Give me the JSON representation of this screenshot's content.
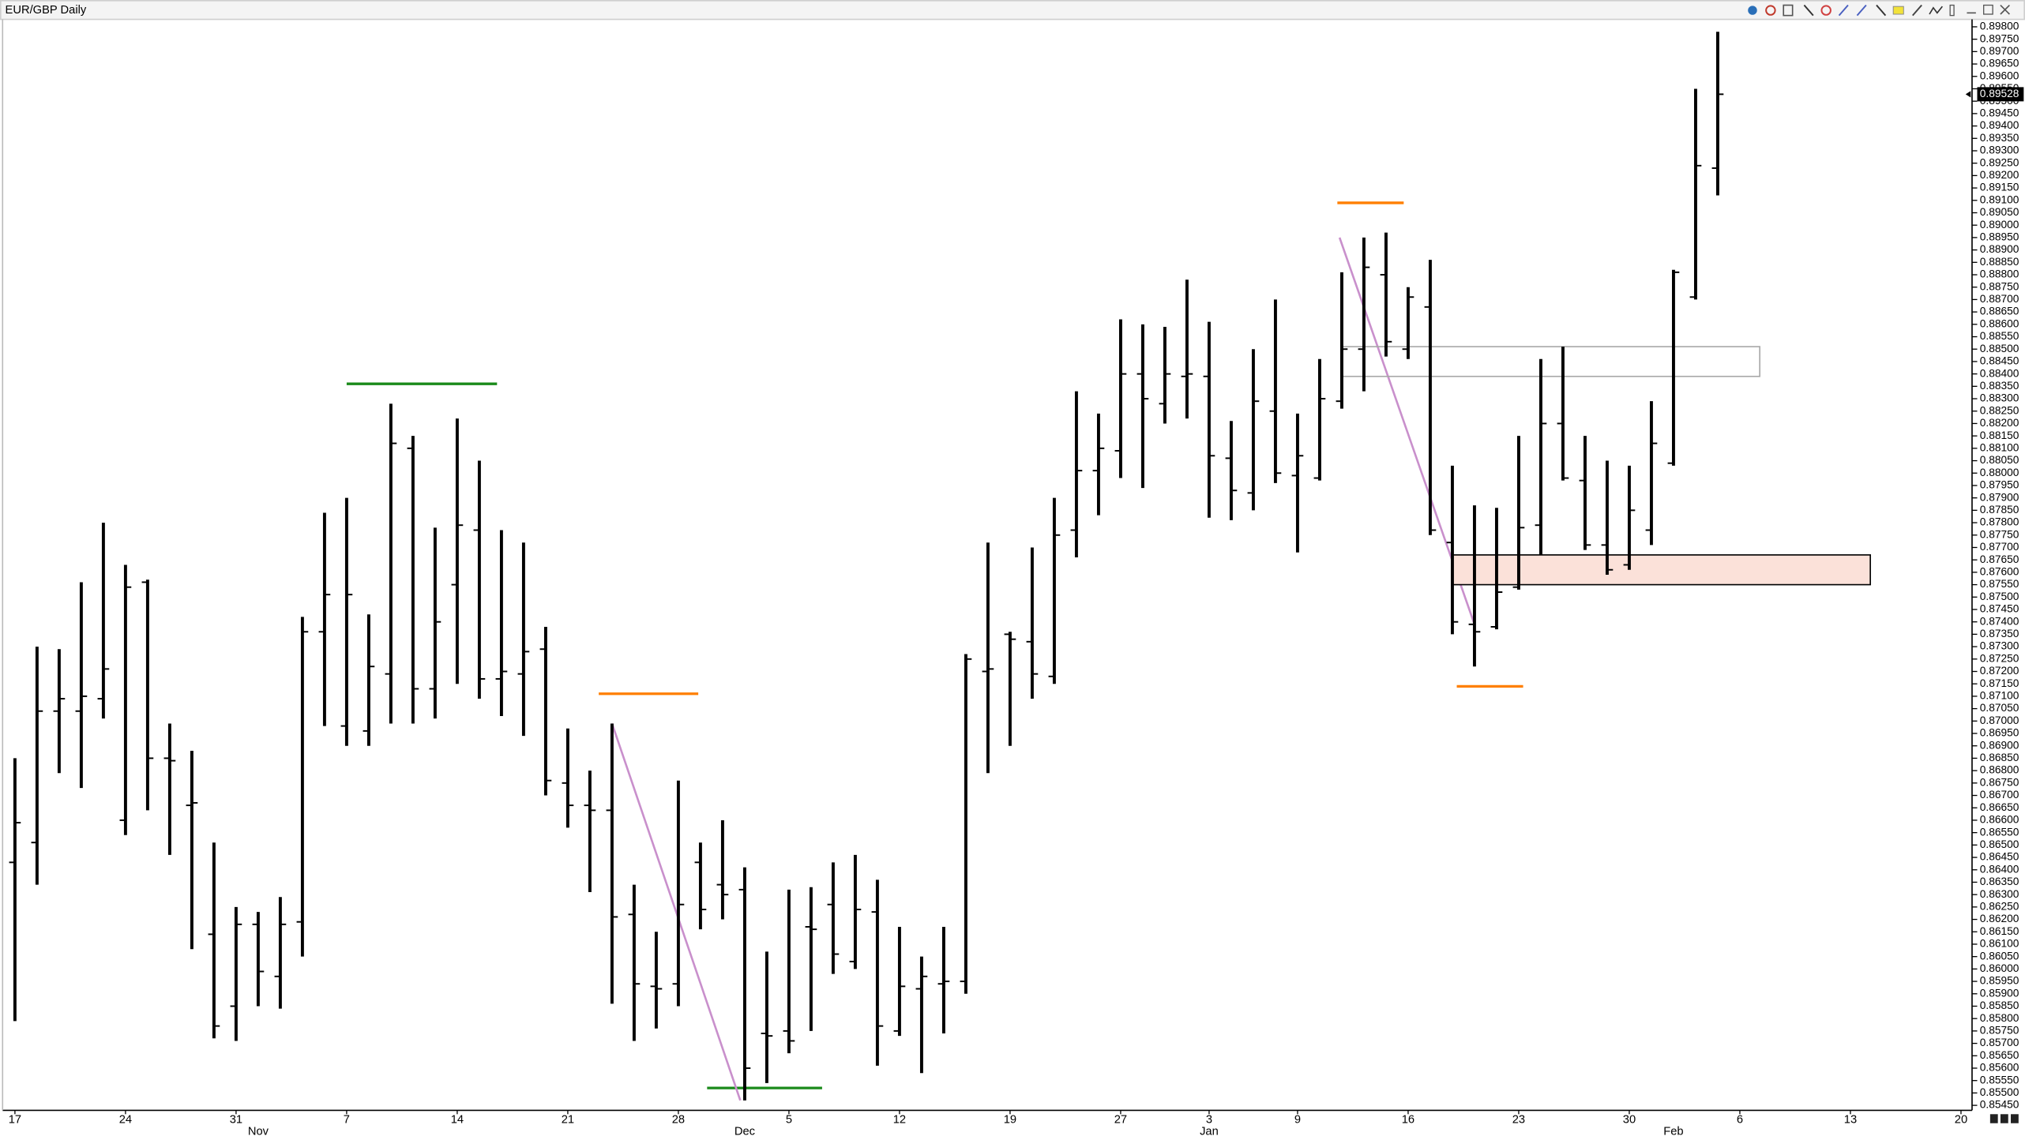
{
  "chart_data": {
    "type": "ohlc",
    "title": "EUR/GBP Daily",
    "categories": [
      "17",
      null,
      null,
      null,
      null,
      "24",
      null,
      null,
      null,
      null,
      "31",
      null,
      null,
      null,
      null,
      "7",
      null,
      null,
      null,
      null,
      "14",
      null,
      null,
      null,
      null,
      "21",
      null,
      null,
      null,
      null,
      "28",
      null,
      null,
      null,
      null,
      "5",
      null,
      null,
      null,
      null,
      "12",
      null,
      null,
      null,
      null,
      "19",
      null,
      null,
      null,
      null,
      "27",
      null,
      null,
      null,
      "3",
      null,
      null,
      null,
      "9",
      null,
      null,
      null,
      null,
      "16",
      null,
      null,
      null,
      null,
      "23",
      null,
      null,
      null,
      null,
      "30",
      null,
      null,
      null,
      null,
      "6",
      null,
      null,
      null,
      null,
      "13",
      null,
      null,
      null,
      null,
      "20"
    ],
    "month_labels": [
      null,
      null,
      null,
      null,
      null,
      null,
      null,
      null,
      null,
      null,
      null,
      "Nov",
      null,
      null,
      null,
      null,
      null,
      null,
      null,
      null,
      null,
      null,
      null,
      null,
      null,
      null,
      null,
      null,
      null,
      null,
      null,
      null,
      null,
      "Dec",
      null,
      null,
      null,
      null,
      null,
      null,
      null,
      null,
      null,
      null,
      null,
      null,
      null,
      null,
      null,
      null,
      null,
      null,
      null,
      null,
      "Jan",
      null,
      null,
      null,
      null,
      null,
      null,
      null,
      null,
      null,
      null,
      null,
      null,
      null,
      null,
      null,
      null,
      null,
      null,
      null,
      null,
      "Feb",
      null,
      null,
      null,
      null,
      null,
      null,
      null,
      null,
      null,
      null,
      null,
      null,
      null
    ],
    "open": [
      0.8643,
      0.8651,
      0.8704,
      0.8704,
      0.8709,
      0.866,
      0.8756,
      0.8685,
      0.8666,
      0.8614,
      0.8585,
      0.8618,
      0.8597,
      0.8619,
      0.8736,
      0.8698,
      0.8696,
      0.8719,
      0.881,
      0.8713,
      0.8755,
      0.8777,
      0.8717,
      0.8719,
      0.8729,
      0.8675,
      0.8666,
      0.8664,
      0.8622,
      0.8593,
      0.8594,
      0.8643,
      0.8634,
      0.8632,
      0.8574,
      0.8575,
      0.8617,
      0.8626,
      0.8603,
      0.8623,
      0.8575,
      0.8592,
      0.8594,
      0.8595,
      0.872,
      0.8735,
      0.8732,
      0.8718,
      0.8777,
      0.8801,
      0.8809,
      0.884,
      0.8828,
      0.8839,
      0.8839,
      0.8806,
      0.8792,
      0.8825,
      0.8799,
      0.8798,
      0.8829,
      0.885,
      0.888,
      0.885,
      0.8867,
      0.8772,
      0.8739,
      0.8738,
      0.8754,
      0.8779,
      0.882,
      0.8797,
      0.8771,
      0.8763,
      0.8777,
      0.8804,
      0.8871,
      0.8923,
      null,
      null,
      null,
      null,
      null,
      null,
      null,
      null,
      null,
      null,
      null
    ],
    "high": [
      0.8685,
      0.873,
      0.8729,
      0.8756,
      0.878,
      0.8763,
      0.8757,
      0.8699,
      0.8688,
      0.8651,
      0.8625,
      0.8623,
      0.8629,
      0.8742,
      0.8784,
      0.879,
      0.8743,
      0.8828,
      0.8815,
      0.8778,
      0.8822,
      0.8805,
      0.8777,
      0.8772,
      0.8738,
      0.8697,
      0.868,
      0.8699,
      0.8634,
      0.8615,
      0.8676,
      0.8651,
      0.866,
      0.8641,
      0.8607,
      0.8632,
      0.8633,
      0.8643,
      0.8646,
      0.8636,
      0.8617,
      0.8605,
      0.8617,
      0.8727,
      0.8772,
      0.8736,
      0.877,
      0.879,
      0.8833,
      0.8824,
      0.8862,
      0.886,
      0.8859,
      0.8878,
      0.8861,
      0.8821,
      0.885,
      0.887,
      0.8824,
      0.8846,
      0.8881,
      0.8895,
      0.8897,
      0.8875,
      0.8886,
      0.8803,
      0.8787,
      0.8786,
      0.8815,
      0.8846,
      0.8851,
      0.8815,
      0.8805,
      0.8803,
      0.8829,
      0.8882,
      0.8955,
      0.8978,
      null,
      null,
      null,
      null,
      null,
      null,
      null,
      null,
      null,
      null,
      null
    ],
    "low": [
      0.8579,
      0.8634,
      0.8679,
      0.8673,
      0.8701,
      0.8654,
      0.8664,
      0.8646,
      0.8608,
      0.8572,
      0.8571,
      0.8585,
      0.8584,
      0.8605,
      0.8698,
      0.869,
      0.869,
      0.8699,
      0.8699,
      0.8701,
      0.8715,
      0.8709,
      0.8702,
      0.8694,
      0.867,
      0.8657,
      0.8631,
      0.8586,
      0.8571,
      0.8576,
      0.8585,
      0.8616,
      0.862,
      0.8547,
      0.8554,
      0.8566,
      0.8575,
      0.8598,
      0.86,
      0.8561,
      0.8573,
      0.8558,
      0.8574,
      0.859,
      0.8679,
      0.869,
      0.8709,
      0.8715,
      0.8766,
      0.8783,
      0.8798,
      0.8794,
      0.882,
      0.8822,
      0.8782,
      0.8781,
      0.8785,
      0.8796,
      0.8768,
      0.8797,
      0.8826,
      0.8833,
      0.8847,
      0.8846,
      0.8775,
      0.8735,
      0.8722,
      0.8737,
      0.8753,
      0.8767,
      0.8797,
      0.8769,
      0.8759,
      0.8761,
      0.8771,
      0.8803,
      0.887,
      0.8912,
      null,
      null,
      null,
      null,
      null,
      null,
      null,
      null,
      null,
      null,
      null
    ],
    "close": [
      0.8659,
      0.8704,
      0.8709,
      0.871,
      0.8721,
      0.8754,
      0.8685,
      0.8684,
      0.8667,
      0.8577,
      0.8618,
      0.8599,
      0.8618,
      0.8736,
      0.8751,
      0.8751,
      0.8722,
      0.8812,
      0.8713,
      0.874,
      0.8779,
      0.8717,
      0.872,
      0.8728,
      0.8676,
      0.8666,
      0.8664,
      0.8621,
      0.8594,
      0.8592,
      0.8626,
      0.8624,
      0.863,
      0.856,
      0.8573,
      0.8571,
      0.8616,
      0.8606,
      0.8624,
      0.8577,
      0.8593,
      0.8597,
      0.8595,
      0.8725,
      0.8721,
      0.8733,
      0.8719,
      0.8775,
      0.8801,
      0.881,
      0.884,
      0.883,
      0.884,
      0.884,
      0.8807,
      0.8793,
      0.8829,
      0.88,
      0.8807,
      0.883,
      0.885,
      0.8883,
      0.8853,
      0.8871,
      0.8777,
      0.874,
      0.8736,
      0.8752,
      0.8778,
      0.882,
      0.8798,
      0.8771,
      0.8761,
      0.8785,
      0.8812,
      0.8881,
      0.8924,
      0.89528,
      null,
      null,
      null,
      null,
      null,
      null,
      null,
      null,
      null,
      null,
      null
    ],
    "color": "#000000",
    "last_price": 0.89528,
    "ylim": [
      0.8543,
      0.8983
    ],
    "yticks": [
      {
        "value": 0.898,
        "label": "0.89800"
      },
      {
        "value": 0.8975,
        "label": "0.89750"
      },
      {
        "value": 0.897,
        "label": "0.89700"
      },
      {
        "value": 0.8965,
        "label": "0.89650"
      },
      {
        "value": 0.896,
        "label": "0.89600"
      },
      {
        "value": 0.8955,
        "label": "0.89550"
      },
      {
        "value": 0.895,
        "label": "0.89500"
      },
      {
        "value": 0.8945,
        "label": "0.89450"
      },
      {
        "value": 0.894,
        "label": "0.89400"
      },
      {
        "value": 0.8935,
        "label": "0.89350"
      },
      {
        "value": 0.893,
        "label": "0.89300"
      },
      {
        "value": 0.8925,
        "label": "0.89250"
      },
      {
        "value": 0.892,
        "label": "0.89200"
      },
      {
        "value": 0.8915,
        "label": "0.89150"
      },
      {
        "value": 0.891,
        "label": "0.89100"
      },
      {
        "value": 0.8905,
        "label": "0.89050"
      },
      {
        "value": 0.89,
        "label": "0.89000"
      },
      {
        "value": 0.8895,
        "label": "0.88950"
      },
      {
        "value": 0.889,
        "label": "0.88900"
      },
      {
        "value": 0.8885,
        "label": "0.88850"
      },
      {
        "value": 0.888,
        "label": "0.88800"
      },
      {
        "value": 0.8875,
        "label": "0.88750"
      },
      {
        "value": 0.887,
        "label": "0.88700"
      },
      {
        "value": 0.8865,
        "label": "0.88650"
      },
      {
        "value": 0.886,
        "label": "0.88600"
      },
      {
        "value": 0.8855,
        "label": "0.88550"
      },
      {
        "value": 0.885,
        "label": "0.88500"
      },
      {
        "value": 0.8845,
        "label": "0.88450"
      },
      {
        "value": 0.884,
        "label": "0.88400"
      },
      {
        "value": 0.8835,
        "label": "0.88350"
      },
      {
        "value": 0.883,
        "label": "0.88300"
      },
      {
        "value": 0.8825,
        "label": "0.88250"
      },
      {
        "value": 0.882,
        "label": "0.88200"
      },
      {
        "value": 0.8815,
        "label": "0.88150"
      },
      {
        "value": 0.881,
        "label": "0.88100"
      },
      {
        "value": 0.8805,
        "label": "0.88050"
      },
      {
        "value": 0.88,
        "label": "0.88000"
      },
      {
        "value": 0.8795,
        "label": "0.87950"
      },
      {
        "value": 0.879,
        "label": "0.87900"
      },
      {
        "value": 0.8785,
        "label": "0.87850"
      },
      {
        "value": 0.878,
        "label": "0.87800"
      },
      {
        "value": 0.8775,
        "label": "0.87750"
      },
      {
        "value": 0.877,
        "label": "0.87700"
      },
      {
        "value": 0.8765,
        "label": "0.87650"
      },
      {
        "value": 0.876,
        "label": "0.87600"
      },
      {
        "value": 0.8755,
        "label": "0.87550"
      },
      {
        "value": 0.875,
        "label": "0.87500"
      },
      {
        "value": 0.8745,
        "label": "0.87450"
      },
      {
        "value": 0.874,
        "label": "0.87400"
      },
      {
        "value": 0.8735,
        "label": "0.87350"
      },
      {
        "value": 0.873,
        "label": "0.87300"
      },
      {
        "value": 0.8725,
        "label": "0.87250"
      },
      {
        "value": 0.872,
        "label": "0.87200"
      },
      {
        "value": 0.8715,
        "label": "0.87150"
      },
      {
        "value": 0.871,
        "label": "0.87100"
      },
      {
        "value": 0.8705,
        "label": "0.87050"
      },
      {
        "value": 0.87,
        "label": "0.87000"
      },
      {
        "value": 0.8695,
        "label": "0.86950"
      },
      {
        "value": 0.869,
        "label": "0.86900"
      },
      {
        "value": 0.8685,
        "label": "0.86850"
      },
      {
        "value": 0.868,
        "label": "0.86800"
      },
      {
        "value": 0.8675,
        "label": "0.86750"
      },
      {
        "value": 0.867,
        "label": "0.86700"
      },
      {
        "value": 0.8665,
        "label": "0.86650"
      },
      {
        "value": 0.866,
        "label": "0.86600"
      },
      {
        "value": 0.8655,
        "label": "0.86550"
      },
      {
        "value": 0.865,
        "label": "0.86500"
      },
      {
        "value": 0.8645,
        "label": "0.86450"
      },
      {
        "value": 0.864,
        "label": "0.86400"
      },
      {
        "value": 0.8635,
        "label": "0.86350"
      },
      {
        "value": 0.863,
        "label": "0.86300"
      },
      {
        "value": 0.8625,
        "label": "0.86250"
      },
      {
        "value": 0.862,
        "label": "0.86200"
      },
      {
        "value": 0.8615,
        "label": "0.86150"
      },
      {
        "value": 0.861,
        "label": "0.86100"
      },
      {
        "value": 0.8605,
        "label": "0.86050"
      },
      {
        "value": 0.86,
        "label": "0.86000"
      },
      {
        "value": 0.8595,
        "label": "0.85950"
      },
      {
        "value": 0.859,
        "label": "0.85900"
      },
      {
        "value": 0.8585,
        "label": "0.85850"
      },
      {
        "value": 0.858,
        "label": "0.85800"
      },
      {
        "value": 0.8575,
        "label": "0.85750"
      },
      {
        "value": 0.857,
        "label": "0.85700"
      },
      {
        "value": 0.8565,
        "label": "0.85650"
      },
      {
        "value": 0.856,
        "label": "0.85600"
      },
      {
        "value": 0.8555,
        "label": "0.85550"
      },
      {
        "value": 0.855,
        "label": "0.85500"
      },
      {
        "value": 0.8545,
        "label": "0.85450"
      }
    ],
    "grid": false,
    "drawings": [
      {
        "kind": "hline",
        "color": "#1a8a1a",
        "x": [
          15,
          21.8
        ],
        "price": 0.8836
      },
      {
        "kind": "hline",
        "color": "#ff7f00",
        "x": [
          26.4,
          30.9
        ],
        "price": 0.8711
      },
      {
        "kind": "hline",
        "color": "#1a8a1a",
        "x": [
          31.3,
          36.5
        ],
        "price": 0.8552
      },
      {
        "kind": "hline",
        "color": "#ff7f00",
        "x": [
          59.8,
          62.8
        ],
        "price": 0.8909
      },
      {
        "kind": "hline",
        "color": "#ff7f00",
        "x": [
          65.2,
          68.2
        ],
        "price": 0.8714
      },
      {
        "kind": "trendline",
        "color": "#c990cc",
        "x": [
          27,
          32.8
        ],
        "price": [
          0.8699,
          0.8547
        ]
      },
      {
        "kind": "trendline",
        "color": "#c990cc",
        "x": [
          59.9,
          66
        ],
        "price": [
          0.8895,
          0.8739
        ]
      },
      {
        "kind": "rect",
        "color": "#a8a8a8",
        "fill": "none",
        "x": [
          60,
          78.9
        ],
        "price": [
          0.8851,
          0.8839
        ]
      },
      {
        "kind": "rect",
        "color": "#000000",
        "fill": "#fbe1d9",
        "x": [
          65,
          83.9
        ],
        "price": [
          0.8767,
          0.8755
        ]
      }
    ]
  }
}
